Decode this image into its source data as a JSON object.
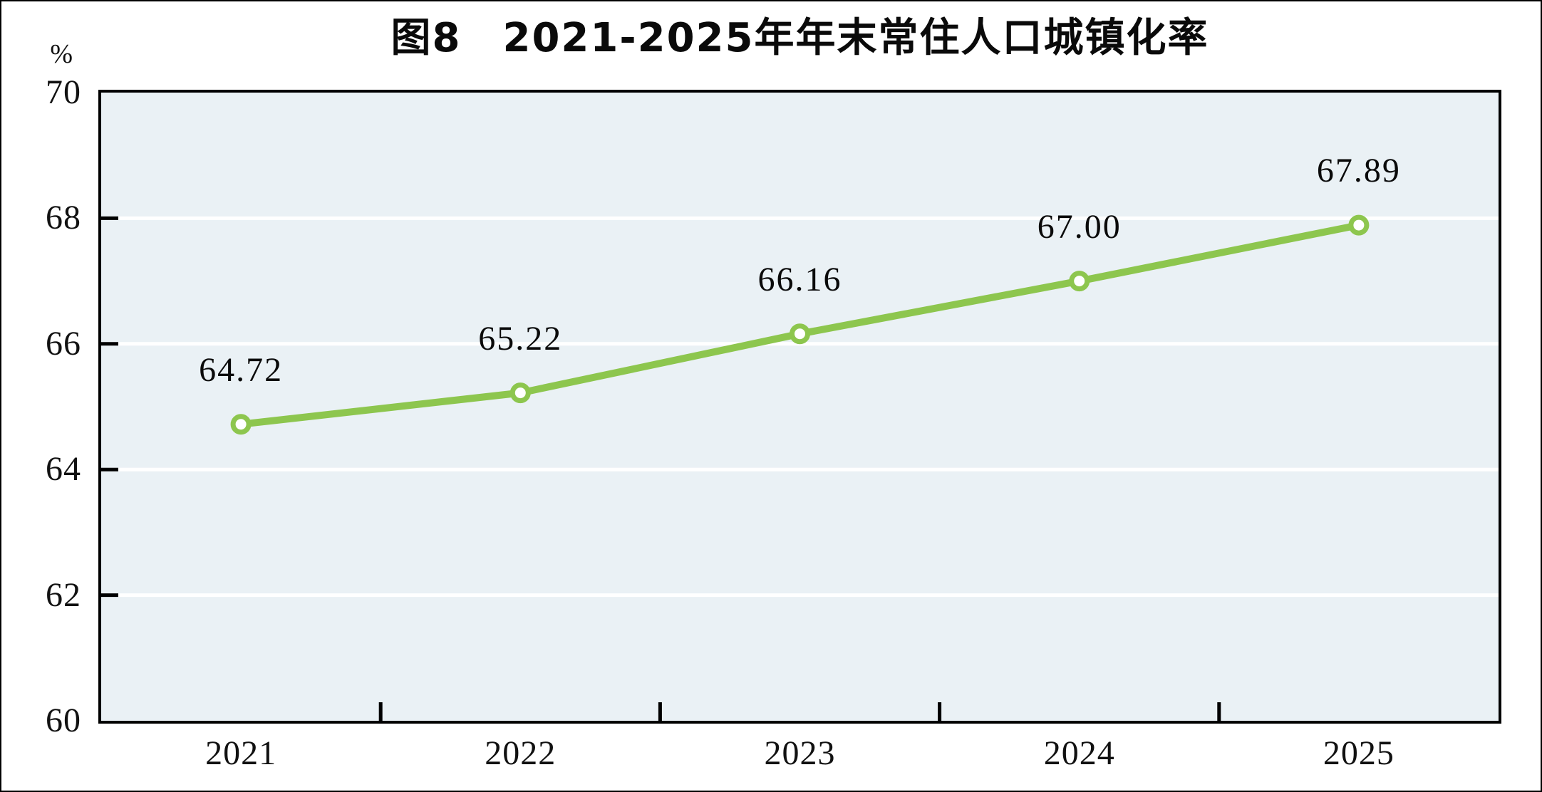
{
  "chart_data": {
    "type": "line",
    "title": "图8　2021-2025年年末常住人口城镇化率",
    "categories": [
      "2021",
      "2022",
      "2023",
      "2024",
      "2025"
    ],
    "values": [
      64.72,
      65.22,
      66.16,
      67.0,
      67.89
    ],
    "data_labels": [
      "64.72",
      "65.22",
      "66.16",
      "67.00",
      "67.89"
    ],
    "xlabel": "",
    "ylabel": "%",
    "ylim": [
      60,
      70
    ],
    "y_ticks": [
      60,
      62,
      64,
      66,
      68,
      70
    ],
    "grid": "horizontal-white-gridlines",
    "legend": "none",
    "marker": "circle-white-fill-green-ring",
    "colors": {
      "line": "#8dc64e",
      "marker_fill": "#ffffff",
      "plot_bg": "#eaf1f5",
      "gridline": "#ffffff",
      "axis": "#000000",
      "text": "#111111"
    }
  }
}
